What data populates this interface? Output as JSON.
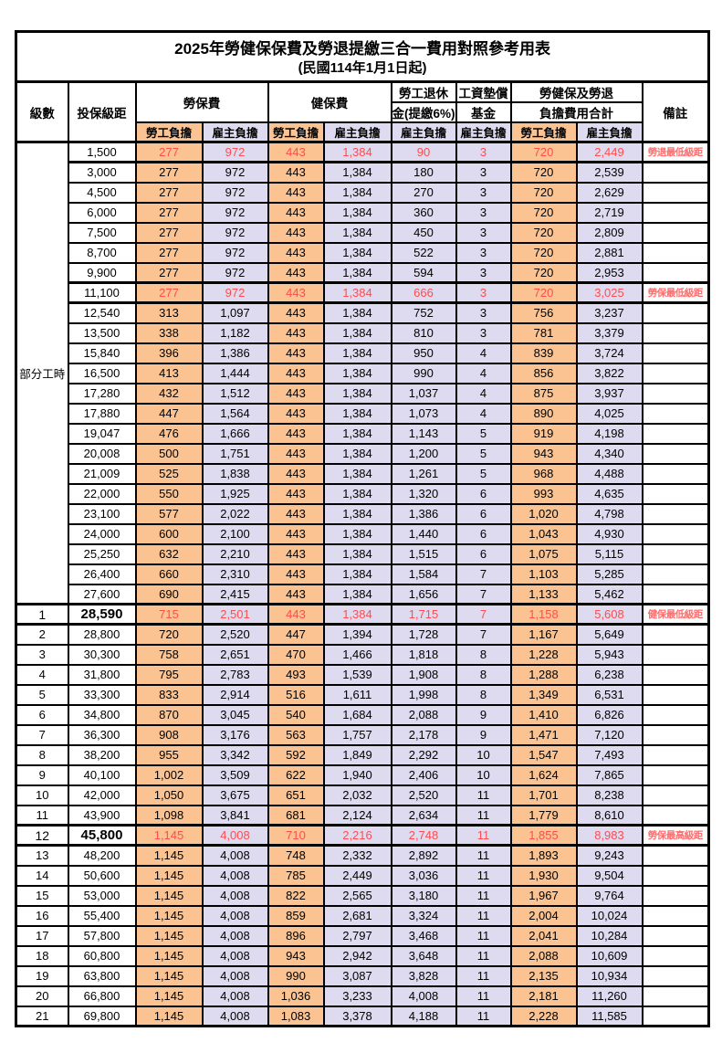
{
  "title": "2025年勞健保保費及勞退提繳三合一費用對照參考用表",
  "subtitle": "(民國114年1月1日起)",
  "colors": {
    "employee_bg": "#FAC391",
    "employer_bg": "#DEDAF0",
    "highlight_text": "#FF4D4D",
    "remark_text": "#FF6B6B"
  },
  "header": {
    "level": "級數",
    "bracket": "投保級距",
    "labor_insurance": "勞保費",
    "health_insurance": "健保費",
    "pension_top": "勞工退休",
    "pension_bottom": "金(提繳6%)",
    "fund_top": "工資墊償",
    "fund_bottom": "基金",
    "total_top": "勞健保及勞退",
    "total_bottom": "負擔費用合計",
    "remark": "備註",
    "employee": "勞工負擔",
    "employer": "雇主負擔"
  },
  "part_time_label": "部分工時",
  "part_time_rowspan": 23,
  "rows": [
    {
      "level": "",
      "bracket": "1,500",
      "li_emp": "277",
      "li_er": "972",
      "hi_emp": "443",
      "hi_er": "1,384",
      "pension": "90",
      "fund": "3",
      "tot_emp": "720",
      "tot_er": "2,449",
      "remark": "勞退最低級距",
      "red": true,
      "big": false
    },
    {
      "level": "",
      "bracket": "3,000",
      "li_emp": "277",
      "li_er": "972",
      "hi_emp": "443",
      "hi_er": "1,384",
      "pension": "180",
      "fund": "3",
      "tot_emp": "720",
      "tot_er": "2,539",
      "remark": "",
      "red": false,
      "big": false
    },
    {
      "level": "",
      "bracket": "4,500",
      "li_emp": "277",
      "li_er": "972",
      "hi_emp": "443",
      "hi_er": "1,384",
      "pension": "270",
      "fund": "3",
      "tot_emp": "720",
      "tot_er": "2,629",
      "remark": "",
      "red": false,
      "big": false
    },
    {
      "level": "",
      "bracket": "6,000",
      "li_emp": "277",
      "li_er": "972",
      "hi_emp": "443",
      "hi_er": "1,384",
      "pension": "360",
      "fund": "3",
      "tot_emp": "720",
      "tot_er": "2,719",
      "remark": "",
      "red": false,
      "big": false
    },
    {
      "level": "",
      "bracket": "7,500",
      "li_emp": "277",
      "li_er": "972",
      "hi_emp": "443",
      "hi_er": "1,384",
      "pension": "450",
      "fund": "3",
      "tot_emp": "720",
      "tot_er": "2,809",
      "remark": "",
      "red": false,
      "big": false
    },
    {
      "level": "",
      "bracket": "8,700",
      "li_emp": "277",
      "li_er": "972",
      "hi_emp": "443",
      "hi_er": "1,384",
      "pension": "522",
      "fund": "3",
      "tot_emp": "720",
      "tot_er": "2,881",
      "remark": "",
      "red": false,
      "big": false
    },
    {
      "level": "",
      "bracket": "9,900",
      "li_emp": "277",
      "li_er": "972",
      "hi_emp": "443",
      "hi_er": "1,384",
      "pension": "594",
      "fund": "3",
      "tot_emp": "720",
      "tot_er": "2,953",
      "remark": "",
      "red": false,
      "big": false
    },
    {
      "level": "",
      "bracket": "11,100",
      "li_emp": "277",
      "li_er": "972",
      "hi_emp": "443",
      "hi_er": "1,384",
      "pension": "666",
      "fund": "3",
      "tot_emp": "720",
      "tot_er": "3,025",
      "remark": "勞保最低級距",
      "red": true,
      "big": false
    },
    {
      "level": "",
      "bracket": "12,540",
      "li_emp": "313",
      "li_er": "1,097",
      "hi_emp": "443",
      "hi_er": "1,384",
      "pension": "752",
      "fund": "3",
      "tot_emp": "756",
      "tot_er": "3,237",
      "remark": "",
      "red": false,
      "big": false
    },
    {
      "level": "",
      "bracket": "13,500",
      "li_emp": "338",
      "li_er": "1,182",
      "hi_emp": "443",
      "hi_er": "1,384",
      "pension": "810",
      "fund": "3",
      "tot_emp": "781",
      "tot_er": "3,379",
      "remark": "",
      "red": false,
      "big": false
    },
    {
      "level": "",
      "bracket": "15,840",
      "li_emp": "396",
      "li_er": "1,386",
      "hi_emp": "443",
      "hi_er": "1,384",
      "pension": "950",
      "fund": "4",
      "tot_emp": "839",
      "tot_er": "3,724",
      "remark": "",
      "red": false,
      "big": false
    },
    {
      "level": "",
      "bracket": "16,500",
      "li_emp": "413",
      "li_er": "1,444",
      "hi_emp": "443",
      "hi_er": "1,384",
      "pension": "990",
      "fund": "4",
      "tot_emp": "856",
      "tot_er": "3,822",
      "remark": "",
      "red": false,
      "big": false
    },
    {
      "level": "",
      "bracket": "17,280",
      "li_emp": "432",
      "li_er": "1,512",
      "hi_emp": "443",
      "hi_er": "1,384",
      "pension": "1,037",
      "fund": "4",
      "tot_emp": "875",
      "tot_er": "3,937",
      "remark": "",
      "red": false,
      "big": false
    },
    {
      "level": "",
      "bracket": "17,880",
      "li_emp": "447",
      "li_er": "1,564",
      "hi_emp": "443",
      "hi_er": "1,384",
      "pension": "1,073",
      "fund": "4",
      "tot_emp": "890",
      "tot_er": "4,025",
      "remark": "",
      "red": false,
      "big": false
    },
    {
      "level": "",
      "bracket": "19,047",
      "li_emp": "476",
      "li_er": "1,666",
      "hi_emp": "443",
      "hi_er": "1,384",
      "pension": "1,143",
      "fund": "5",
      "tot_emp": "919",
      "tot_er": "4,198",
      "remark": "",
      "red": false,
      "big": false
    },
    {
      "level": "",
      "bracket": "20,008",
      "li_emp": "500",
      "li_er": "1,751",
      "hi_emp": "443",
      "hi_er": "1,384",
      "pension": "1,200",
      "fund": "5",
      "tot_emp": "943",
      "tot_er": "4,340",
      "remark": "",
      "red": false,
      "big": false
    },
    {
      "level": "",
      "bracket": "21,009",
      "li_emp": "525",
      "li_er": "1,838",
      "hi_emp": "443",
      "hi_er": "1,384",
      "pension": "1,261",
      "fund": "5",
      "tot_emp": "968",
      "tot_er": "4,488",
      "remark": "",
      "red": false,
      "big": false
    },
    {
      "level": "",
      "bracket": "22,000",
      "li_emp": "550",
      "li_er": "1,925",
      "hi_emp": "443",
      "hi_er": "1,384",
      "pension": "1,320",
      "fund": "6",
      "tot_emp": "993",
      "tot_er": "4,635",
      "remark": "",
      "red": false,
      "big": false
    },
    {
      "level": "",
      "bracket": "23,100",
      "li_emp": "577",
      "li_er": "2,022",
      "hi_emp": "443",
      "hi_er": "1,384",
      "pension": "1,386",
      "fund": "6",
      "tot_emp": "1,020",
      "tot_er": "4,798",
      "remark": "",
      "red": false,
      "big": false
    },
    {
      "level": "",
      "bracket": "24,000",
      "li_emp": "600",
      "li_er": "2,100",
      "hi_emp": "443",
      "hi_er": "1,384",
      "pension": "1,440",
      "fund": "6",
      "tot_emp": "1,043",
      "tot_er": "4,930",
      "remark": "",
      "red": false,
      "big": false
    },
    {
      "level": "",
      "bracket": "25,250",
      "li_emp": "632",
      "li_er": "2,210",
      "hi_emp": "443",
      "hi_er": "1,384",
      "pension": "1,515",
      "fund": "6",
      "tot_emp": "1,075",
      "tot_er": "5,115",
      "remark": "",
      "red": false,
      "big": false
    },
    {
      "level": "",
      "bracket": "26,400",
      "li_emp": "660",
      "li_er": "2,310",
      "hi_emp": "443",
      "hi_er": "1,384",
      "pension": "1,584",
      "fund": "7",
      "tot_emp": "1,103",
      "tot_er": "5,285",
      "remark": "",
      "red": false,
      "big": false
    },
    {
      "level": "",
      "bracket": "27,600",
      "li_emp": "690",
      "li_er": "2,415",
      "hi_emp": "443",
      "hi_er": "1,384",
      "pension": "1,656",
      "fund": "7",
      "tot_emp": "1,133",
      "tot_er": "5,462",
      "remark": "",
      "red": false,
      "big": false
    },
    {
      "level": "1",
      "bracket": "28,590",
      "li_emp": "715",
      "li_er": "2,501",
      "hi_emp": "443",
      "hi_er": "1,384",
      "pension": "1,715",
      "fund": "7",
      "tot_emp": "1,158",
      "tot_er": "5,608",
      "remark": "健保最低級距",
      "red": true,
      "big": true
    },
    {
      "level": "2",
      "bracket": "28,800",
      "li_emp": "720",
      "li_er": "2,520",
      "hi_emp": "447",
      "hi_er": "1,394",
      "pension": "1,728",
      "fund": "7",
      "tot_emp": "1,167",
      "tot_er": "5,649",
      "remark": "",
      "red": false,
      "big": false
    },
    {
      "level": "3",
      "bracket": "30,300",
      "li_emp": "758",
      "li_er": "2,651",
      "hi_emp": "470",
      "hi_er": "1,466",
      "pension": "1,818",
      "fund": "8",
      "tot_emp": "1,228",
      "tot_er": "5,943",
      "remark": "",
      "red": false,
      "big": false
    },
    {
      "level": "4",
      "bracket": "31,800",
      "li_emp": "795",
      "li_er": "2,783",
      "hi_emp": "493",
      "hi_er": "1,539",
      "pension": "1,908",
      "fund": "8",
      "tot_emp": "1,288",
      "tot_er": "6,238",
      "remark": "",
      "red": false,
      "big": false
    },
    {
      "level": "5",
      "bracket": "33,300",
      "li_emp": "833",
      "li_er": "2,914",
      "hi_emp": "516",
      "hi_er": "1,611",
      "pension": "1,998",
      "fund": "8",
      "tot_emp": "1,349",
      "tot_er": "6,531",
      "remark": "",
      "red": false,
      "big": false
    },
    {
      "level": "6",
      "bracket": "34,800",
      "li_emp": "870",
      "li_er": "3,045",
      "hi_emp": "540",
      "hi_er": "1,684",
      "pension": "2,088",
      "fund": "9",
      "tot_emp": "1,410",
      "tot_er": "6,826",
      "remark": "",
      "red": false,
      "big": false
    },
    {
      "level": "7",
      "bracket": "36,300",
      "li_emp": "908",
      "li_er": "3,176",
      "hi_emp": "563",
      "hi_er": "1,757",
      "pension": "2,178",
      "fund": "9",
      "tot_emp": "1,471",
      "tot_er": "7,120",
      "remark": "",
      "red": false,
      "big": false
    },
    {
      "level": "8",
      "bracket": "38,200",
      "li_emp": "955",
      "li_er": "3,342",
      "hi_emp": "592",
      "hi_er": "1,849",
      "pension": "2,292",
      "fund": "10",
      "tot_emp": "1,547",
      "tot_er": "7,493",
      "remark": "",
      "red": false,
      "big": false
    },
    {
      "level": "9",
      "bracket": "40,100",
      "li_emp": "1,002",
      "li_er": "3,509",
      "hi_emp": "622",
      "hi_er": "1,940",
      "pension": "2,406",
      "fund": "10",
      "tot_emp": "1,624",
      "tot_er": "7,865",
      "remark": "",
      "red": false,
      "big": false
    },
    {
      "level": "10",
      "bracket": "42,000",
      "li_emp": "1,050",
      "li_er": "3,675",
      "hi_emp": "651",
      "hi_er": "2,032",
      "pension": "2,520",
      "fund": "11",
      "tot_emp": "1,701",
      "tot_er": "8,238",
      "remark": "",
      "red": false,
      "big": false
    },
    {
      "level": "11",
      "bracket": "43,900",
      "li_emp": "1,098",
      "li_er": "3,841",
      "hi_emp": "681",
      "hi_er": "2,124",
      "pension": "2,634",
      "fund": "11",
      "tot_emp": "1,779",
      "tot_er": "8,610",
      "remark": "",
      "red": false,
      "big": false
    },
    {
      "level": "12",
      "bracket": "45,800",
      "li_emp": "1,145",
      "li_er": "4,008",
      "hi_emp": "710",
      "hi_er": "2,216",
      "pension": "2,748",
      "fund": "11",
      "tot_emp": "1,855",
      "tot_er": "8,983",
      "remark": "勞保最高級距",
      "red": true,
      "big": true
    },
    {
      "level": "13",
      "bracket": "48,200",
      "li_emp": "1,145",
      "li_er": "4,008",
      "hi_emp": "748",
      "hi_er": "2,332",
      "pension": "2,892",
      "fund": "11",
      "tot_emp": "1,893",
      "tot_er": "9,243",
      "remark": "",
      "red": false,
      "big": false
    },
    {
      "level": "14",
      "bracket": "50,600",
      "li_emp": "1,145",
      "li_er": "4,008",
      "hi_emp": "785",
      "hi_er": "2,449",
      "pension": "3,036",
      "fund": "11",
      "tot_emp": "1,930",
      "tot_er": "9,504",
      "remark": "",
      "red": false,
      "big": false
    },
    {
      "level": "15",
      "bracket": "53,000",
      "li_emp": "1,145",
      "li_er": "4,008",
      "hi_emp": "822",
      "hi_er": "2,565",
      "pension": "3,180",
      "fund": "11",
      "tot_emp": "1,967",
      "tot_er": "9,764",
      "remark": "",
      "red": false,
      "big": false
    },
    {
      "level": "16",
      "bracket": "55,400",
      "li_emp": "1,145",
      "li_er": "4,008",
      "hi_emp": "859",
      "hi_er": "2,681",
      "pension": "3,324",
      "fund": "11",
      "tot_emp": "2,004",
      "tot_er": "10,024",
      "remark": "",
      "red": false,
      "big": false
    },
    {
      "level": "17",
      "bracket": "57,800",
      "li_emp": "1,145",
      "li_er": "4,008",
      "hi_emp": "896",
      "hi_er": "2,797",
      "pension": "3,468",
      "fund": "11",
      "tot_emp": "2,041",
      "tot_er": "10,284",
      "remark": "",
      "red": false,
      "big": false
    },
    {
      "level": "18",
      "bracket": "60,800",
      "li_emp": "1,145",
      "li_er": "4,008",
      "hi_emp": "943",
      "hi_er": "2,942",
      "pension": "3,648",
      "fund": "11",
      "tot_emp": "2,088",
      "tot_er": "10,609",
      "remark": "",
      "red": false,
      "big": false
    },
    {
      "level": "19",
      "bracket": "63,800",
      "li_emp": "1,145",
      "li_er": "4,008",
      "hi_emp": "990",
      "hi_er": "3,087",
      "pension": "3,828",
      "fund": "11",
      "tot_emp": "2,135",
      "tot_er": "10,934",
      "remark": "",
      "red": false,
      "big": false
    },
    {
      "level": "20",
      "bracket": "66,800",
      "li_emp": "1,145",
      "li_er": "4,008",
      "hi_emp": "1,036",
      "hi_er": "3,233",
      "pension": "4,008",
      "fund": "11",
      "tot_emp": "2,181",
      "tot_er": "11,260",
      "remark": "",
      "red": false,
      "big": false
    },
    {
      "level": "21",
      "bracket": "69,800",
      "li_emp": "1,145",
      "li_er": "4,008",
      "hi_emp": "1,083",
      "hi_er": "3,378",
      "pension": "4,188",
      "fund": "11",
      "tot_emp": "2,228",
      "tot_er": "11,585",
      "remark": "",
      "red": false,
      "big": false
    }
  ]
}
